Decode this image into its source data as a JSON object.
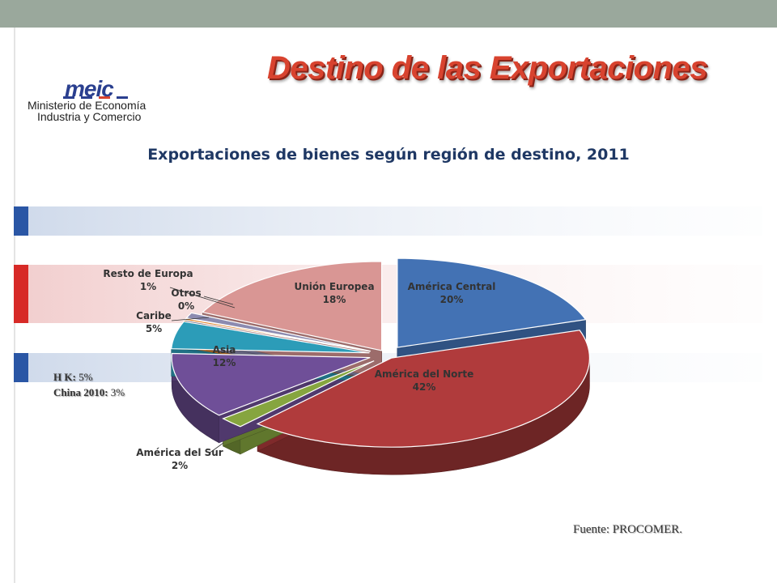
{
  "slide": {
    "title": "Destino de las Exportaciones",
    "source_label": "Fuente: ",
    "source_value": "PROCOMER."
  },
  "logo": {
    "mark": "meic",
    "line1": "Ministerio de Economía",
    "line2": "Industria y Comercio",
    "colors": [
      "#2a3f8f",
      "#d8432f"
    ]
  },
  "note": {
    "items": [
      {
        "label": "H K:",
        "value": "5%"
      },
      {
        "label": "China 2010:",
        "value": "3%"
      }
    ]
  },
  "chart_data": {
    "type": "pie",
    "title": "Exportaciones de bienes según región de destino, 2011",
    "unit": "%",
    "slices": [
      {
        "name": "América Central",
        "value": 20,
        "label": "20%",
        "color": "#4372b4"
      },
      {
        "name": "América del Norte",
        "value": 42,
        "label": "42%",
        "color": "#b03b3c"
      },
      {
        "name": "América del Sur",
        "value": 2,
        "label": "2%",
        "color": "#86a53f"
      },
      {
        "name": "Asia",
        "value": 12,
        "label": "12%",
        "color": "#6f4f98"
      },
      {
        "name": "Caribe",
        "value": 5,
        "label": "5%",
        "color": "#2c9cb8"
      },
      {
        "name": "Otros",
        "value": 0,
        "label": "0%",
        "color": "#e0852c"
      },
      {
        "name": "Resto de Europa",
        "value": 1,
        "label": "1%",
        "color": "#8c8bb0"
      },
      {
        "name": "Unión Europea",
        "value": 18,
        "label": "18%",
        "color": "#d99694"
      }
    ]
  }
}
